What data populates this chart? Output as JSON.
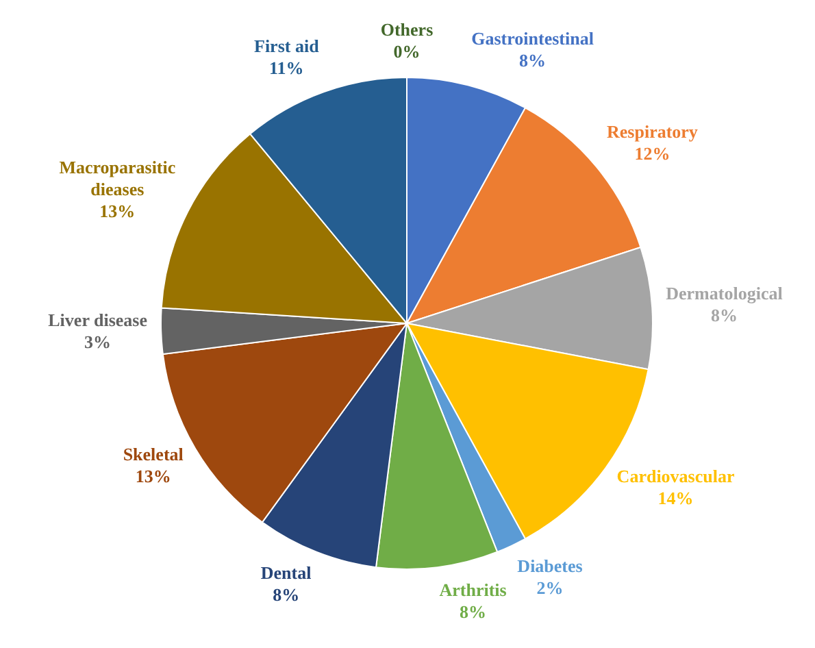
{
  "chart_data": {
    "type": "pie",
    "categories": [
      "Gastrointestinal",
      "Respiratory",
      "Dermatological",
      "Cardiovascular",
      "Diabetes",
      "Arthritis",
      "Dental",
      "Skeletal",
      "Liver disease",
      "Macroparasitic dieases",
      "First aid",
      "Others"
    ],
    "values": [
      8,
      12,
      8,
      14,
      2,
      8,
      8,
      13,
      3,
      13,
      11,
      0
    ],
    "value_labels": [
      "8%",
      "12%",
      "8%",
      "14%",
      "2%",
      "8%",
      "8%",
      "13%",
      "3%",
      "13%",
      "11%",
      "0%"
    ],
    "colors": [
      "#4472c4",
      "#ed7d31",
      "#a5a5a5",
      "#ffc000",
      "#5b9bd5",
      "#70ad47",
      "#264478",
      "#9e480e",
      "#636363",
      "#997300",
      "#255e91",
      "#43682b"
    ],
    "legend": false
  }
}
